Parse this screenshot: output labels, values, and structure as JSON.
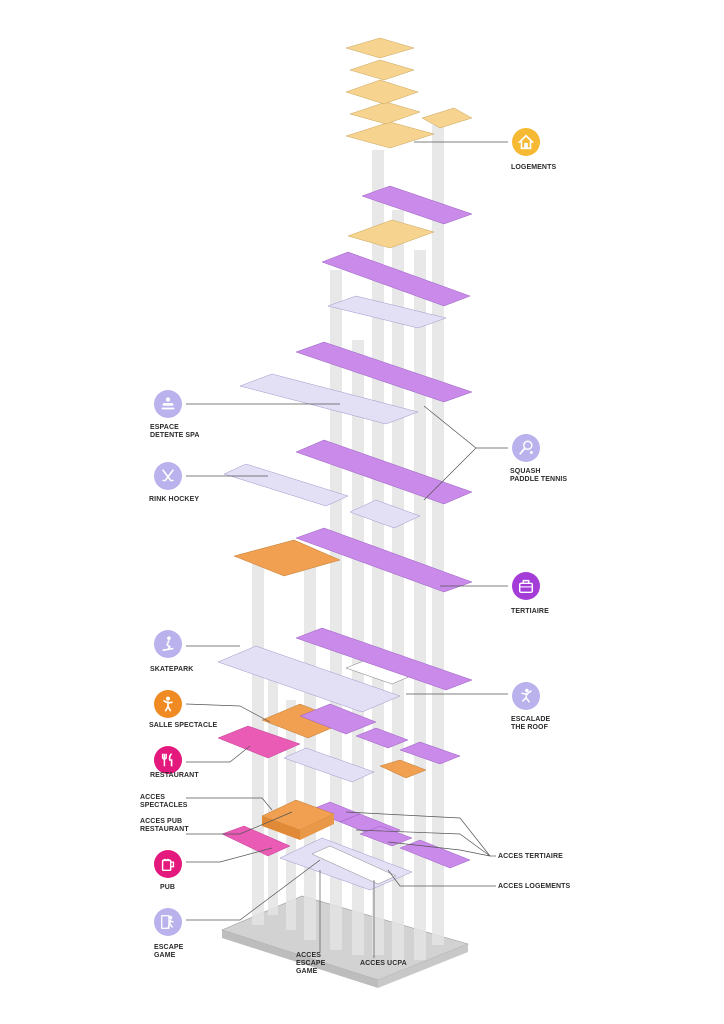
{
  "colors": {
    "logements": "#F6D38F",
    "activity_purple": "#C98AEA",
    "sport_lavender": "#D9D6F2",
    "spectacle_orange": "#F0A050",
    "restaurant_pink": "#E95BB5",
    "pub_magenta": "#E3197D",
    "tertiaire_violet": "#B13BDB",
    "column_grey": "#E2E2E2",
    "base_grey": "#D0D0D0",
    "leader_line": "#555555"
  },
  "categories": {
    "logements": {
      "lines": [
        "LOGEMENTS"
      ],
      "icon": "house-icon"
    },
    "spa": {
      "lines": [
        "ESPACE",
        "DETENTE SPA"
      ],
      "icon": "spa-icon"
    },
    "rink": {
      "lines": [
        "RINK HOCKEY"
      ],
      "icon": "hockey-sticks-icon"
    },
    "squash": {
      "lines": [
        "SQUASH",
        "PADDLE TENNIS"
      ],
      "icon": "racket-icon"
    },
    "tertiaire": {
      "lines": [
        "TERTIAIRE"
      ],
      "icon": "briefcase-icon"
    },
    "skatepark": {
      "lines": [
        "SKATEPARK"
      ],
      "icon": "skateboard-icon"
    },
    "salle": {
      "lines": [
        "SALLE SPECTACLE"
      ],
      "icon": "performer-icon"
    },
    "restaurant": {
      "lines": [
        "RESTAURANT"
      ],
      "icon": "fork-knife-icon"
    },
    "escalade": {
      "lines": [
        "ESCALADE",
        "THE ROOF"
      ],
      "icon": "climber-icon"
    },
    "pub": {
      "lines": [
        "PUB"
      ],
      "icon": "beer-mug-icon"
    },
    "escape": {
      "lines": [
        "ESCAPE",
        "GAME"
      ],
      "icon": "escape-figure-icon"
    }
  },
  "access": {
    "spectacles": {
      "lines": [
        "ACCES",
        "SPECTACLES"
      ]
    },
    "pub_restaurant": {
      "lines": [
        "ACCES PUB",
        "RESTAURANT"
      ]
    },
    "tertiaire": {
      "lines": [
        "ACCES TERTIAIRE"
      ]
    },
    "logements": {
      "lines": [
        "ACCES LOGEMENTS"
      ]
    },
    "escape_game": {
      "lines": [
        "ACCES",
        "ESCAPE",
        "GAME"
      ]
    },
    "ucpa": {
      "lines": [
        "ACCES UCPA"
      ]
    }
  }
}
